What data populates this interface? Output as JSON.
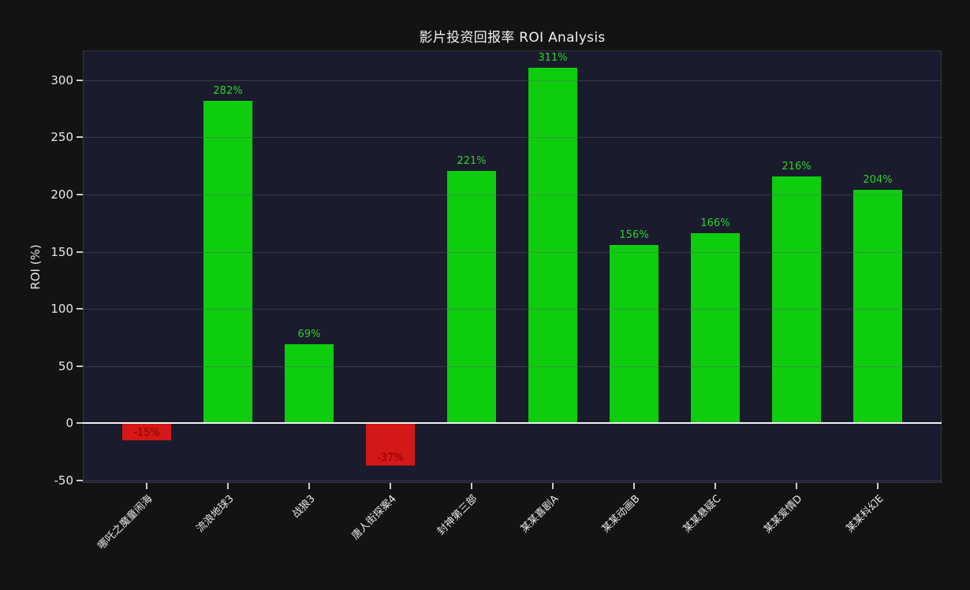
{
  "title": "影片投资回报率 ROI Analysis",
  "chart_data": {
    "type": "bar",
    "title": "影片投资回报率 ROI Analysis",
    "xlabel": "",
    "ylabel": "ROI (%)",
    "categories": [
      "哪吒之魔童闹海",
      "流浪地球3",
      "战狼3",
      "唐人街探案4",
      "封神第三部",
      "某某喜剧A",
      "某某动画B",
      "某某悬疑C",
      "某某爱情D",
      "某某科幻E"
    ],
    "values": [
      -15,
      282,
      69,
      -37,
      221,
      311,
      156,
      166,
      216,
      204
    ],
    "bar_labels": [
      "-15%",
      "282%",
      "69%",
      "-37%",
      "221%",
      "311%",
      "156%",
      "166%",
      "216%",
      "204%"
    ],
    "yticks": [
      -50,
      0,
      50,
      100,
      150,
      200,
      250,
      300
    ],
    "ylim": [
      -52,
      326
    ],
    "grid": true,
    "legend": false,
    "colors": {
      "figure_bg": "#131313",
      "plot_bg": "#1b1b2e",
      "positive_bar": "#0ecd0e",
      "negative_bar": "#d41717",
      "positive_label": "#2bd42b",
      "negative_label": "#8b0000",
      "gridline": "rgba(95,95,112,0.45)",
      "zero_line": "#f2f2f4",
      "tick_text": "#e8e8e8",
      "title_text": "#f2f2f2"
    }
  }
}
